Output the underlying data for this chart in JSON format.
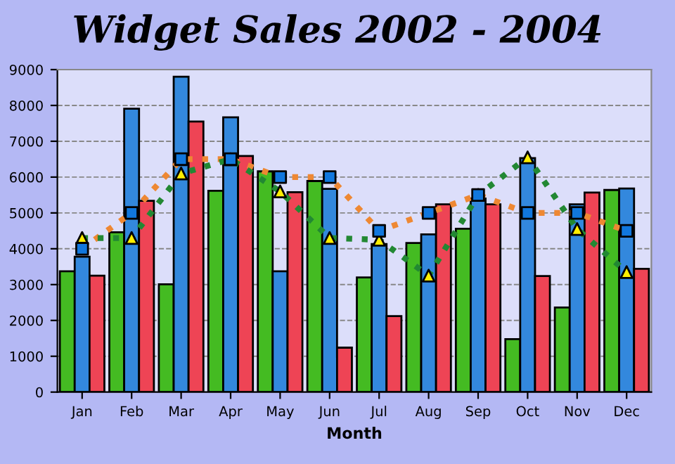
{
  "chart_data": {
    "type": "bar",
    "title": "Widget Sales 2002 - 2004",
    "xlabel": "Month",
    "categories": [
      "Jan",
      "Feb",
      "Mar",
      "Apr",
      "May",
      "Jun",
      "Jul",
      "Aug",
      "Sep",
      "Oct",
      "Nov",
      "Dec"
    ],
    "series": [
      {
        "color": "#44bb22",
        "values": [
          3370,
          4460,
          3010,
          5620,
          6160,
          5890,
          3200,
          4160,
          4560,
          1480,
          2360,
          5640
        ]
      },
      {
        "color": "#3388dd",
        "values": [
          3780,
          7910,
          8800,
          7670,
          3370,
          5670,
          4130,
          4400,
          5400,
          6530,
          5240,
          5680
        ]
      },
      {
        "color": "#ee4455",
        "values": [
          3250,
          5340,
          7550,
          6590,
          5580,
          1240,
          2120,
          5240,
          5240,
          3240,
          5570,
          3440
        ]
      },
      {
        "type": "line",
        "color": "#ee8833",
        "marker": "square",
        "colors": [
          "#1177dd",
          "#1177dd",
          "#1177dd",
          "#1177dd",
          "#1177dd",
          "#1177dd",
          "#1177dd",
          "#1177dd",
          "#1177dd",
          "#1177dd",
          "#1177dd",
          "#1177dd"
        ],
        "line_style": "dotted",
        "values": [
          4000,
          5000,
          6500,
          6500,
          6000,
          6000,
          4500,
          5000,
          5500,
          5000,
          5000,
          4500
        ]
      },
      {
        "type": "line",
        "color": "#228833",
        "marker": "triangle",
        "colors": [
          "#ffee00",
          "#ffee00",
          "#ffee00",
          "#ffee00",
          "#ffee00",
          "#ffee00",
          "#ffee00",
          "#ffee00",
          "#ffee00",
          "#ffee00",
          "#ffee00",
          "#ffee00"
        ],
        "line_style": "dotted",
        "values": [
          4300,
          4300,
          6100,
          6500,
          5600,
          4300,
          4250,
          3250,
          5500,
          6550,
          4550,
          3350
        ]
      }
    ],
    "ylim": [
      0,
      9000
    ],
    "yticks": [
      0,
      1000,
      2000,
      3000,
      4000,
      5000,
      6000,
      7000,
      8000,
      9000
    ],
    "grid": "y",
    "legend": false
  }
}
